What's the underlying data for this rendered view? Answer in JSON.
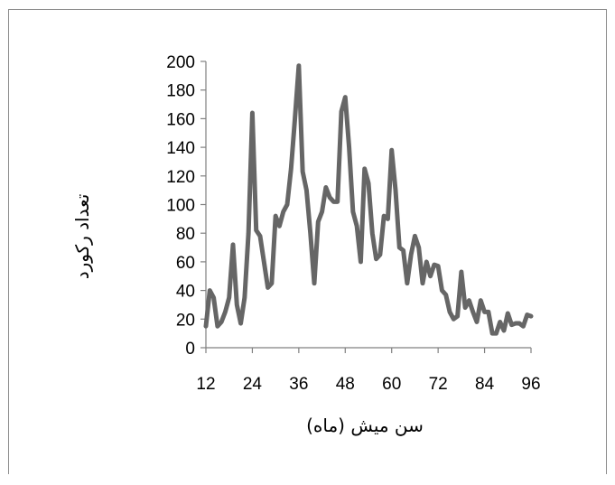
{
  "chart_data": {
    "type": "line",
    "title": "",
    "xlabel": "سن میش (ماه)",
    "ylabel": "تعداد رکورد",
    "xlim": [
      12,
      96
    ],
    "ylim": [
      0,
      200
    ],
    "xticks": [
      12,
      24,
      36,
      48,
      60,
      72,
      84,
      96
    ],
    "yticks": [
      0,
      20,
      40,
      60,
      80,
      100,
      120,
      140,
      160,
      180,
      200
    ],
    "grid": false,
    "legend": "none",
    "line_color": "#666666",
    "x": [
      12,
      13,
      14,
      15,
      16,
      17,
      18,
      19,
      20,
      21,
      22,
      23,
      24,
      25,
      26,
      27,
      28,
      29,
      30,
      31,
      32,
      33,
      34,
      35,
      36,
      37,
      38,
      39,
      40,
      41,
      42,
      43,
      44,
      45,
      46,
      47,
      48,
      49,
      50,
      51,
      52,
      53,
      54,
      55,
      56,
      57,
      58,
      59,
      60,
      61,
      62,
      63,
      64,
      65,
      66,
      67,
      68,
      69,
      70,
      71,
      72,
      73,
      74,
      75,
      76,
      77,
      78,
      79,
      80,
      81,
      82,
      83,
      84,
      85,
      86,
      87,
      88,
      89,
      90,
      91,
      92,
      93,
      94,
      95,
      96
    ],
    "values": [
      15,
      40,
      35,
      15,
      18,
      25,
      35,
      72,
      30,
      17,
      35,
      80,
      164,
      82,
      78,
      60,
      42,
      45,
      92,
      85,
      95,
      100,
      125,
      160,
      197,
      123,
      110,
      80,
      45,
      88,
      95,
      112,
      105,
      102,
      102,
      165,
      175,
      140,
      95,
      85,
      60,
      125,
      115,
      80,
      62,
      65,
      92,
      90,
      138,
      110,
      70,
      68,
      45,
      65,
      78,
      70,
      45,
      60,
      50,
      58,
      57,
      40,
      37,
      25,
      20,
      22,
      53,
      28,
      33,
      25,
      18,
      33,
      25,
      25,
      10,
      10,
      18,
      12,
      24,
      16,
      17,
      17,
      15,
      23,
      22
    ]
  }
}
